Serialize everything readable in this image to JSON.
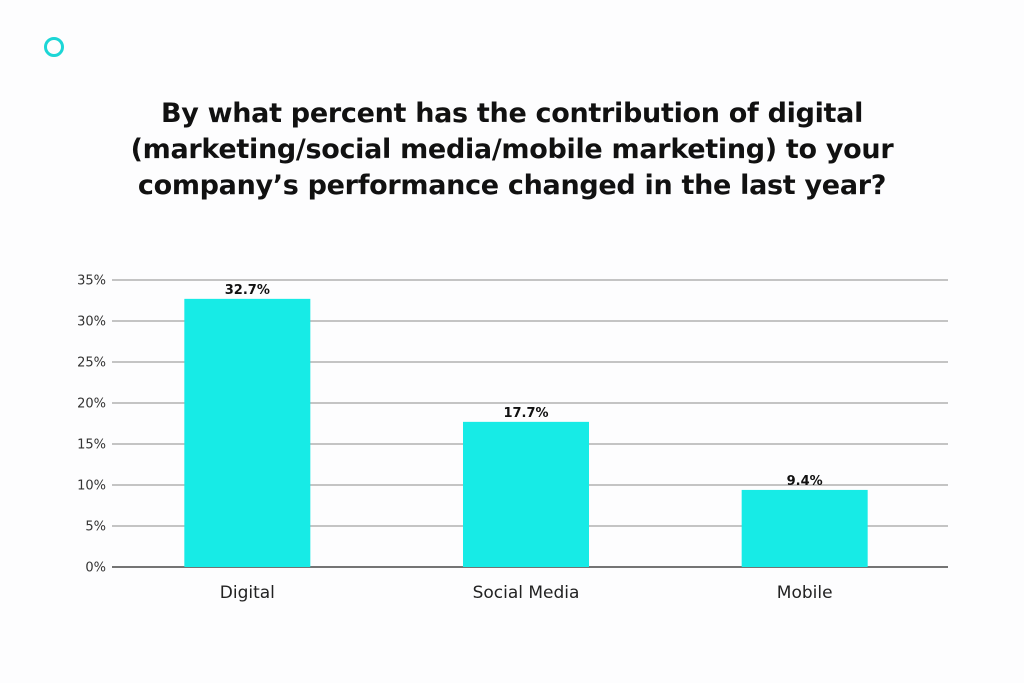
{
  "brand": {
    "logo_icon": "ring-icon",
    "accent_color": "#1cd6d6"
  },
  "chart_data": {
    "type": "bar",
    "title": "By what percent has the contribution of digital (marketing/social media/mobile marketing) to your company’s performance changed in the last year?",
    "categories": [
      "Digital",
      "Social Media",
      "Mobile"
    ],
    "values": [
      32.7,
      17.7,
      9.4
    ],
    "data_labels": [
      "32.7%",
      "17.7%",
      "9.4%"
    ],
    "xlabel": "",
    "ylabel": "",
    "ylim": [
      0,
      35
    ],
    "y_ticks": [
      0,
      5,
      10,
      15,
      20,
      25,
      30,
      35
    ],
    "y_tick_labels": [
      "0%",
      "5%",
      "10%",
      "15%",
      "20%",
      "25%",
      "30%",
      "35%"
    ],
    "grid": true,
    "legend": "none",
    "bar_color": "#17ebe6"
  }
}
